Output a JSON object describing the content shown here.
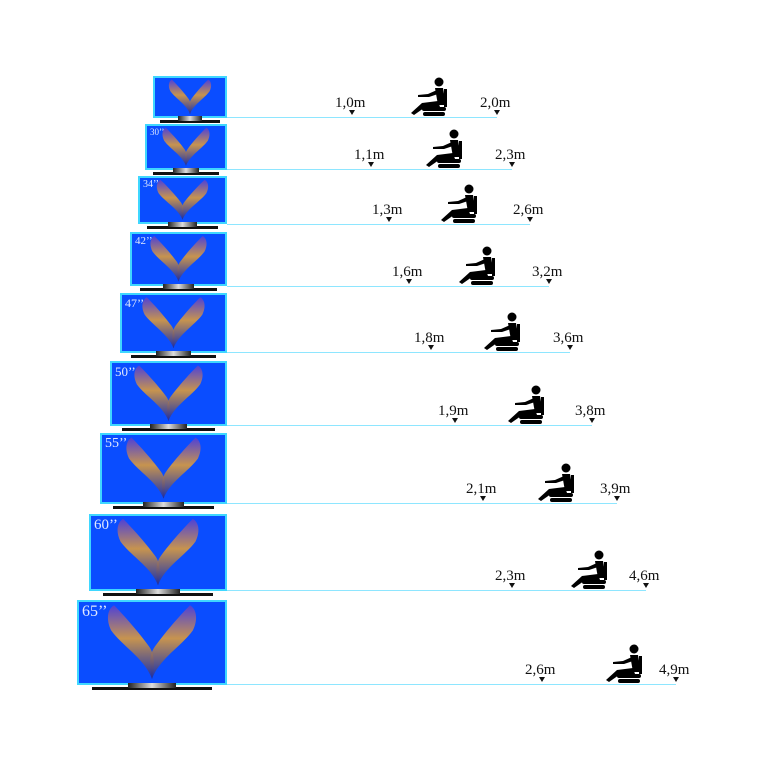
{
  "colors": {
    "screen": "#0a4dff",
    "screen_border": "#3fd7ff",
    "floor_line": "#8ee6ff",
    "text": "#111111"
  },
  "icons": {
    "viewer": "seated-person-icon",
    "marker": "triangle-down-icon",
    "tv": "tv-icon"
  },
  "rows": [
    {
      "size": "",
      "min": "1,0m",
      "max": "2,0m"
    },
    {
      "size": "30’’",
      "min": "1,1m",
      "max": "2,3m"
    },
    {
      "size": "34’’",
      "min": "1,3m",
      "max": "2,6m"
    },
    {
      "size": "42’’",
      "min": "1,6m",
      "max": "3,2m"
    },
    {
      "size": "47’’",
      "min": "1,8m",
      "max": "3,6m"
    },
    {
      "size": "50’’",
      "min": "1,9m",
      "max": "3,8m"
    },
    {
      "size": "55’’",
      "min": "2,1m",
      "max": "3,9m"
    },
    {
      "size": "60’’",
      "min": "2,3m",
      "max": "4,6m"
    },
    {
      "size": "65’’",
      "min": "2,6m",
      "max": "4,9m"
    }
  ]
}
